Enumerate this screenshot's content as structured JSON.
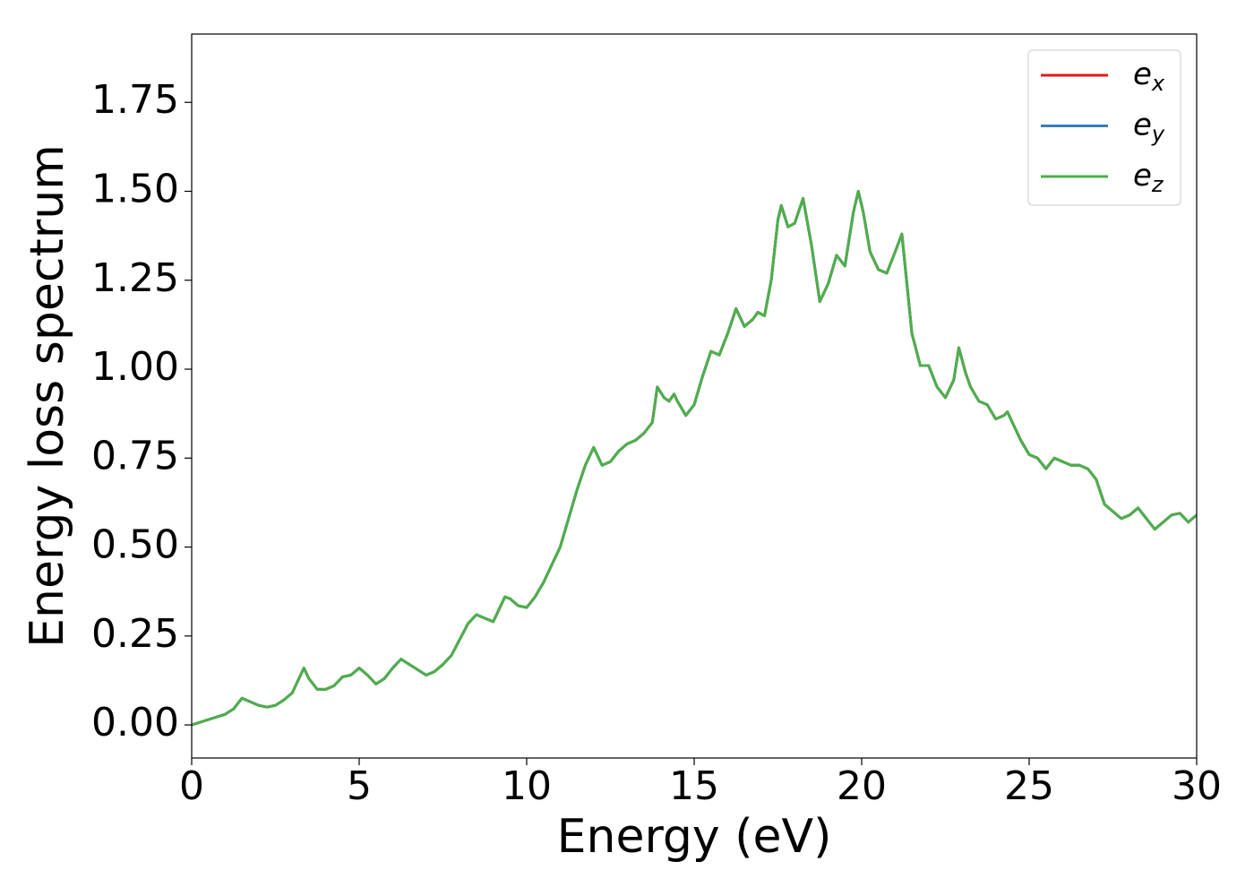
{
  "chart_data": {
    "type": "line",
    "x_label": "Energy (eV)",
    "y_label": "Energy loss spectrum",
    "xlim": [
      0,
      30
    ],
    "ylim": [
      -0.093,
      1.942
    ],
    "xticks": [
      0,
      5,
      10,
      15,
      20,
      25,
      30
    ],
    "yticks": [
      {
        "value": 0,
        "label": "0.00"
      },
      0.25,
      {
        "value": 0.5,
        "label": "0.50"
      },
      0.75,
      {
        "value": 1,
        "label": "1.00"
      },
      1.25,
      {
        "value": 1.5,
        "label": "1.50"
      },
      1.75
    ],
    "legend": "upper right",
    "x": [
      0,
      0.5,
      1,
      1.25,
      1.5,
      1.75,
      2,
      2.25,
      2.5,
      2.75,
      3,
      3.25,
      3.35,
      3.5,
      3.75,
      4,
      4.25,
      4.5,
      4.75,
      5,
      5.25,
      5.5,
      5.75,
      6,
      6.25,
      6.5,
      6.75,
      7,
      7.25,
      7.5,
      7.75,
      8,
      8.25,
      8.5,
      8.75,
      9,
      9.25,
      9.35,
      9.5,
      9.75,
      10,
      10.25,
      10.5,
      10.75,
      11,
      11.25,
      11.5,
      11.75,
      12,
      12.25,
      12.5,
      12.75,
      13,
      13.25,
      13.5,
      13.75,
      13.9,
      14.1,
      14.25,
      14.4,
      14.5,
      14.75,
      15,
      15.25,
      15.5,
      15.75,
      16,
      16.25,
      16.5,
      16.75,
      16.9,
      17.1,
      17.3,
      17.5,
      17.6,
      17.8,
      18,
      18.25,
      18.5,
      18.75,
      19,
      19.25,
      19.5,
      19.75,
      19.9,
      20.05,
      20.25,
      20.5,
      20.75,
      21,
      21.2,
      21.5,
      21.75,
      22,
      22.25,
      22.5,
      22.75,
      22.9,
      23.1,
      23.25,
      23.5,
      23.75,
      24,
      24.25,
      24.35,
      24.5,
      24.75,
      25,
      25.25,
      25.5,
      25.75,
      26,
      26.25,
      26.5,
      26.75,
      27,
      27.25,
      27.5,
      27.75,
      28,
      28.25,
      28.5,
      28.75,
      29,
      29.25,
      29.5,
      29.75,
      30
    ],
    "series": [
      {
        "name": "ex",
        "color": "#e41a1c",
        "values": [
          0,
          0.015,
          0.03,
          0.045,
          0.075,
          0.065,
          0.055,
          0.05,
          0.055,
          0.07,
          0.09,
          0.14,
          0.16,
          0.13,
          0.1,
          0.1,
          0.11,
          0.135,
          0.14,
          0.16,
          0.14,
          0.115,
          0.13,
          0.16,
          0.185,
          0.17,
          0.155,
          0.14,
          0.15,
          0.17,
          0.195,
          0.24,
          0.285,
          0.31,
          0.3,
          0.29,
          0.34,
          0.36,
          0.355,
          0.335,
          0.33,
          0.36,
          0.4,
          0.45,
          0.5,
          0.58,
          0.66,
          0.73,
          0.78,
          0.73,
          0.74,
          0.77,
          0.79,
          0.8,
          0.82,
          0.85,
          0.95,
          0.92,
          0.91,
          0.93,
          0.91,
          0.87,
          0.9,
          0.98,
          1.05,
          1.04,
          1.1,
          1.17,
          1.12,
          1.14,
          1.16,
          1.15,
          1.25,
          1.42,
          1.46,
          1.4,
          1.41,
          1.48,
          1.35,
          1.19,
          1.24,
          1.32,
          1.29,
          1.44,
          1.5,
          1.44,
          1.33,
          1.28,
          1.27,
          1.33,
          1.38,
          1.1,
          1.01,
          1.01,
          0.95,
          0.92,
          0.97,
          1.06,
          0.99,
          0.95,
          0.91,
          0.9,
          0.86,
          0.87,
          0.88,
          0.85,
          0.8,
          0.76,
          0.75,
          0.72,
          0.75,
          0.74,
          0.73,
          0.73,
          0.72,
          0.69,
          0.62,
          0.6,
          0.58,
          0.59,
          0.61,
          0.58,
          0.55,
          0.57,
          0.59,
          0.595,
          0.57,
          0.59
        ]
      },
      {
        "name": "ey",
        "color": "#377eb8",
        "values": [
          0,
          0.015,
          0.03,
          0.045,
          0.075,
          0.065,
          0.055,
          0.05,
          0.055,
          0.07,
          0.09,
          0.14,
          0.16,
          0.13,
          0.1,
          0.1,
          0.11,
          0.135,
          0.14,
          0.16,
          0.14,
          0.115,
          0.13,
          0.16,
          0.185,
          0.17,
          0.155,
          0.14,
          0.15,
          0.17,
          0.195,
          0.24,
          0.285,
          0.31,
          0.3,
          0.29,
          0.34,
          0.36,
          0.355,
          0.335,
          0.33,
          0.36,
          0.4,
          0.45,
          0.5,
          0.58,
          0.66,
          0.73,
          0.78,
          0.73,
          0.74,
          0.77,
          0.79,
          0.8,
          0.82,
          0.85,
          0.95,
          0.92,
          0.91,
          0.93,
          0.91,
          0.87,
          0.9,
          0.98,
          1.05,
          1.04,
          1.1,
          1.17,
          1.12,
          1.14,
          1.16,
          1.15,
          1.25,
          1.42,
          1.46,
          1.4,
          1.41,
          1.48,
          1.35,
          1.19,
          1.24,
          1.32,
          1.29,
          1.44,
          1.5,
          1.44,
          1.33,
          1.28,
          1.27,
          1.33,
          1.38,
          1.1,
          1.01,
          1.01,
          0.95,
          0.92,
          0.97,
          1.06,
          0.99,
          0.95,
          0.91,
          0.9,
          0.86,
          0.87,
          0.88,
          0.85,
          0.8,
          0.76,
          0.75,
          0.72,
          0.75,
          0.74,
          0.73,
          0.73,
          0.72,
          0.69,
          0.62,
          0.6,
          0.58,
          0.59,
          0.61,
          0.58,
          0.55,
          0.57,
          0.59,
          0.595,
          0.57,
          0.59
        ]
      },
      {
        "name": "ez",
        "color": "#4daf4a",
        "values": [
          0,
          0.015,
          0.03,
          0.045,
          0.075,
          0.065,
          0.055,
          0.05,
          0.055,
          0.07,
          0.09,
          0.14,
          0.16,
          0.13,
          0.1,
          0.1,
          0.11,
          0.135,
          0.14,
          0.16,
          0.14,
          0.115,
          0.13,
          0.16,
          0.185,
          0.17,
          0.155,
          0.14,
          0.15,
          0.17,
          0.195,
          0.24,
          0.285,
          0.31,
          0.3,
          0.29,
          0.34,
          0.36,
          0.355,
          0.335,
          0.33,
          0.36,
          0.4,
          0.45,
          0.5,
          0.58,
          0.66,
          0.73,
          0.78,
          0.73,
          0.74,
          0.77,
          0.79,
          0.8,
          0.82,
          0.85,
          0.95,
          0.92,
          0.91,
          0.93,
          0.91,
          0.87,
          0.9,
          0.98,
          1.05,
          1.04,
          1.1,
          1.17,
          1.12,
          1.14,
          1.16,
          1.15,
          1.25,
          1.42,
          1.46,
          1.4,
          1.41,
          1.48,
          1.35,
          1.19,
          1.24,
          1.32,
          1.29,
          1.44,
          1.5,
          1.44,
          1.33,
          1.28,
          1.27,
          1.33,
          1.38,
          1.1,
          1.01,
          1.01,
          0.95,
          0.92,
          0.97,
          1.06,
          0.99,
          0.95,
          0.91,
          0.9,
          0.86,
          0.87,
          0.88,
          0.85,
          0.8,
          0.76,
          0.75,
          0.72,
          0.75,
          0.74,
          0.73,
          0.73,
          0.72,
          0.69,
          0.62,
          0.6,
          0.58,
          0.59,
          0.61,
          0.58,
          0.55,
          0.57,
          0.59,
          0.595,
          0.57,
          0.59
        ]
      }
    ]
  }
}
